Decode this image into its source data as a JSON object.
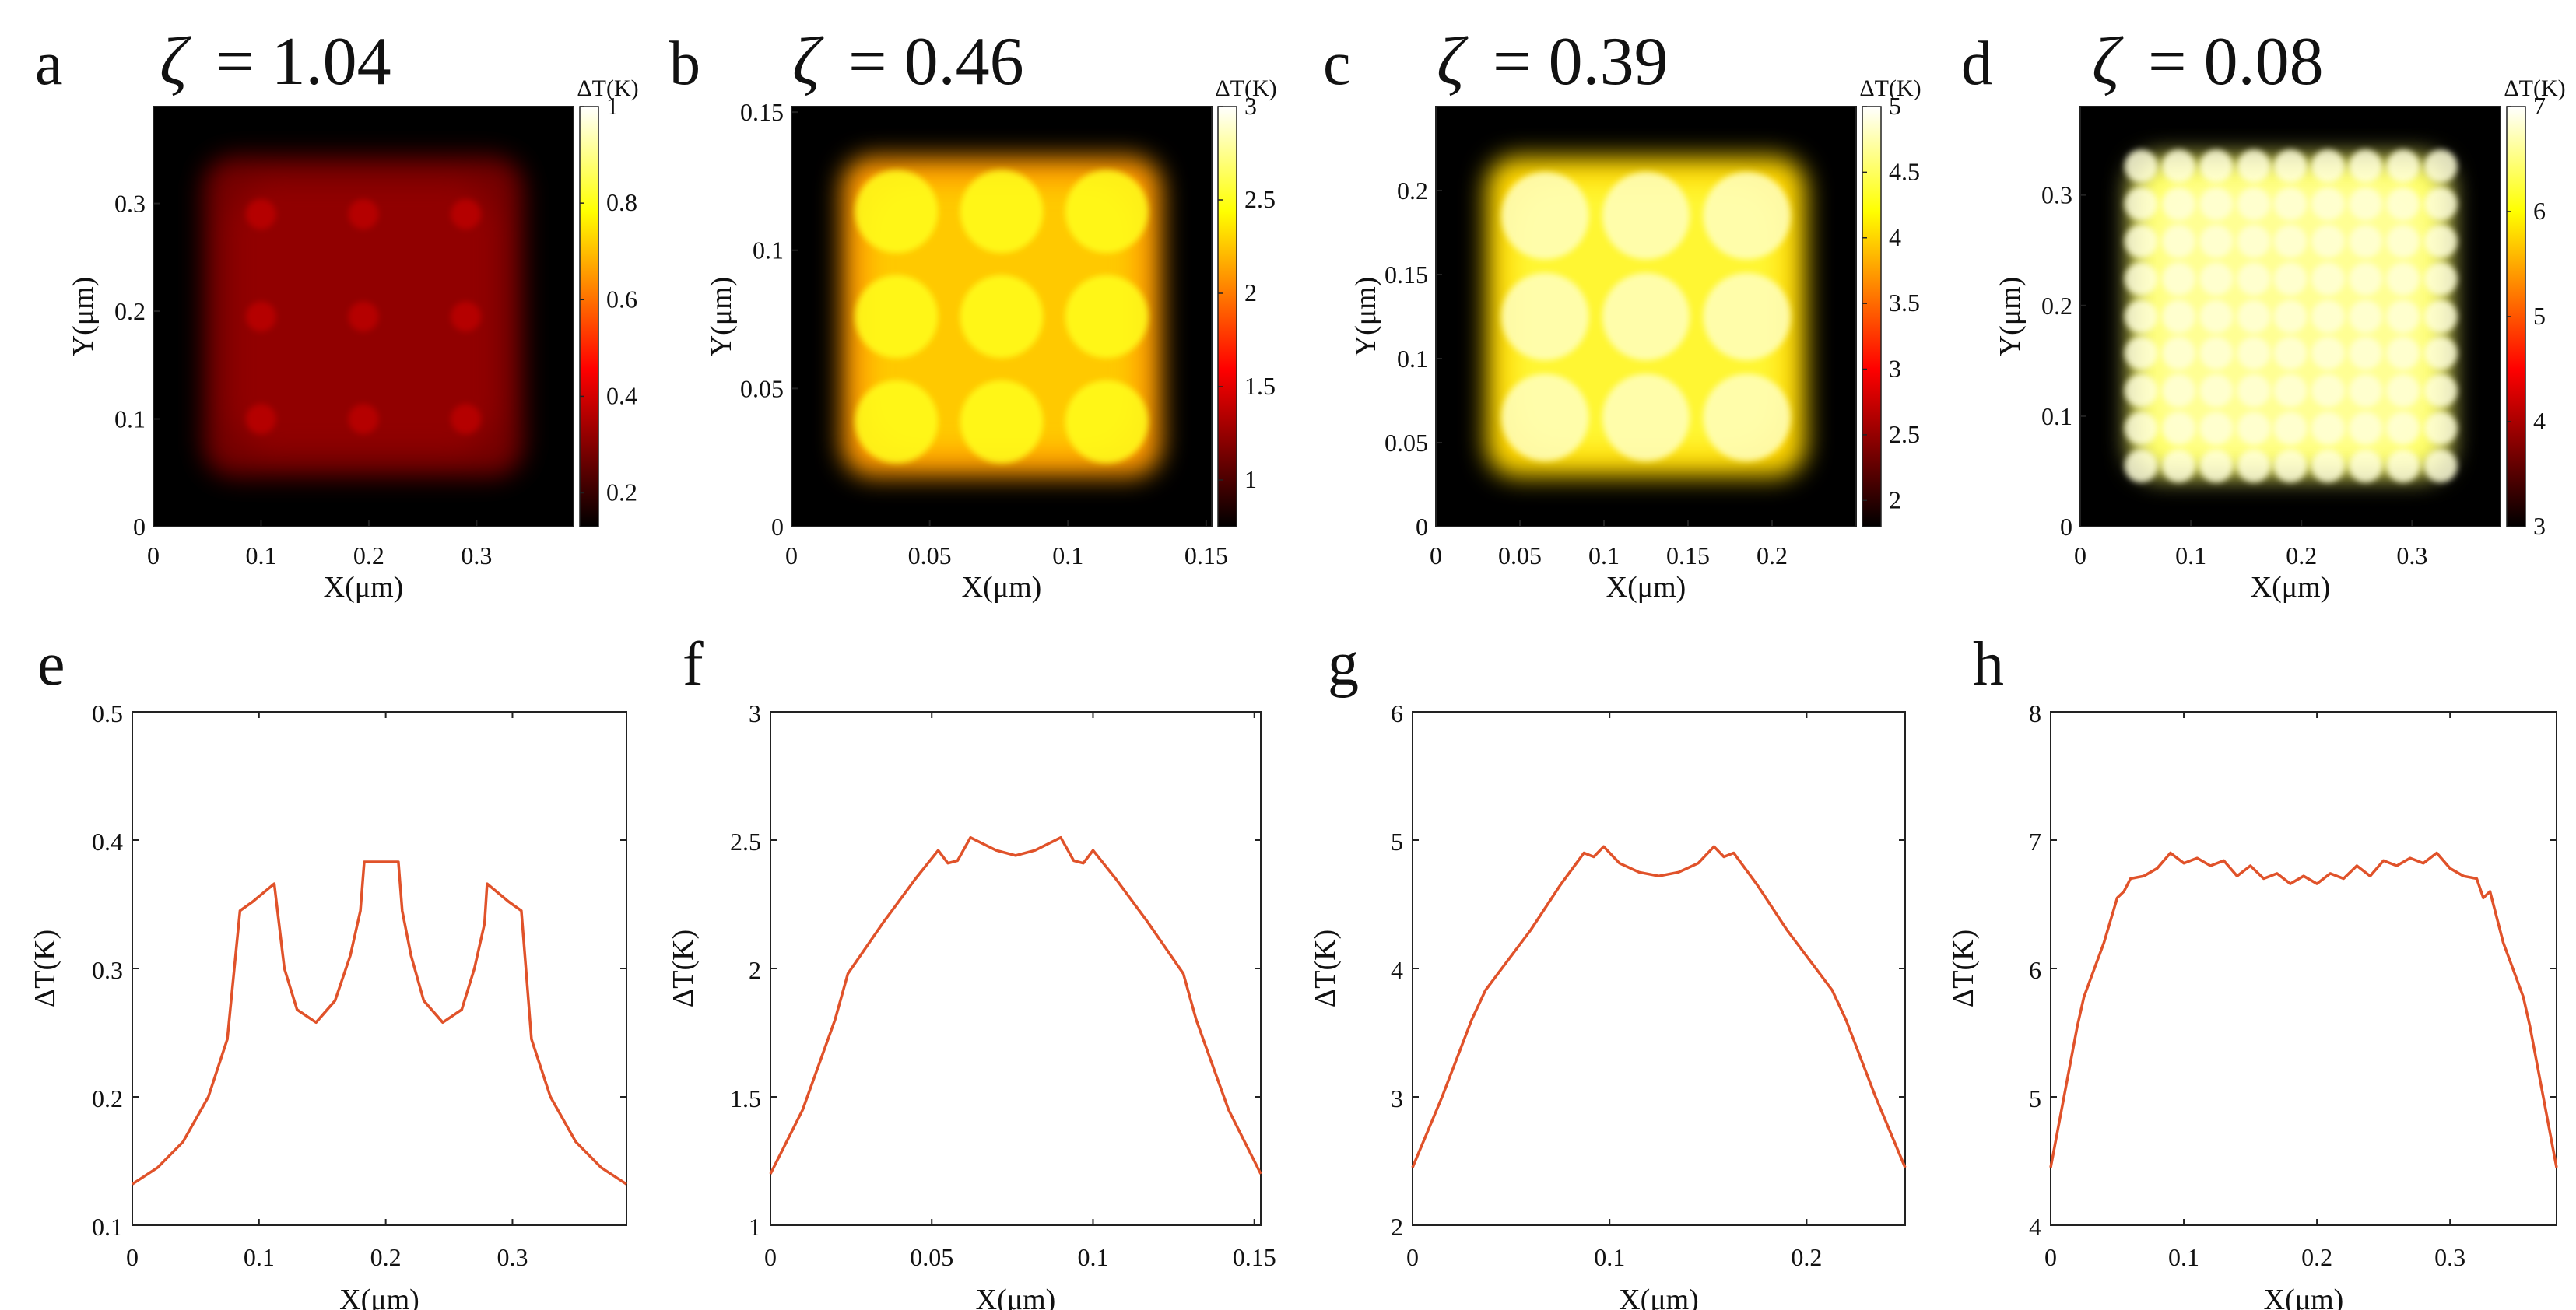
{
  "chart_data": [
    {
      "type": "heatmap",
      "panel": "a",
      "title_symbol": "ζ",
      "title_value": "= 1.04",
      "xlabel": "X(μm)",
      "ylabel": "Y(μm)",
      "xlim": [
        0,
        0.39
      ],
      "ylim": [
        0,
        0.39
      ],
      "xticks": [
        0,
        0.1,
        0.2,
        0.3
      ],
      "yticks": [
        0,
        0.1,
        0.2,
        0.3
      ],
      "colorbar_label": "ΔT(K)",
      "colorbar_range": [
        0.13,
        1
      ],
      "colorbar_ticks": [
        0.2,
        0.4,
        0.6,
        0.8,
        1
      ],
      "grid_n": 3,
      "grid_x": [
        0.1,
        0.195,
        0.29
      ],
      "grid_y": [
        0.1,
        0.195,
        0.29
      ],
      "spot_radius": 0.014,
      "background_level": 0.28,
      "spot_level": 0.37
    },
    {
      "type": "heatmap",
      "panel": "b",
      "title_symbol": "ζ",
      "title_value": "= 0.46",
      "xlabel": "X(μm)",
      "ylabel": "Y(μm)",
      "xlim": [
        0,
        0.152
      ],
      "ylim": [
        0,
        0.152
      ],
      "xticks": [
        0,
        0.05,
        0.1,
        0.15
      ],
      "yticks": [
        0,
        0.05,
        0.1,
        0.15
      ],
      "colorbar_label": "ΔT(K)",
      "colorbar_range": [
        0.75,
        3
      ],
      "colorbar_ticks": [
        1,
        1.5,
        2,
        2.5,
        3
      ],
      "grid_n": 3,
      "grid_x": [
        0.038,
        0.076,
        0.114
      ],
      "grid_y": [
        0.038,
        0.076,
        0.114
      ],
      "spot_radius": 0.015,
      "background_level": 2.1,
      "spot_level": 2.5
    },
    {
      "type": "heatmap",
      "panel": "c",
      "title_symbol": "ζ",
      "title_value": "= 0.39",
      "xlabel": "X(μm)",
      "ylabel": "Y(μm)",
      "xlim": [
        0,
        0.25
      ],
      "ylim": [
        0,
        0.25
      ],
      "xticks": [
        0,
        0.05,
        0.1,
        0.15,
        0.2
      ],
      "yticks": [
        0,
        0.05,
        0.1,
        0.15,
        0.2
      ],
      "colorbar_label": "ΔT(K)",
      "colorbar_range": [
        1.8,
        5
      ],
      "colorbar_ticks": [
        2,
        2.5,
        3,
        3.5,
        4,
        4.5,
        5
      ],
      "grid_n": 3,
      "grid_x": [
        0.065,
        0.125,
        0.185
      ],
      "grid_y": [
        0.065,
        0.125,
        0.185
      ],
      "spot_radius": 0.026,
      "background_level": 4.0,
      "spot_level": 4.8
    },
    {
      "type": "heatmap",
      "panel": "d",
      "title_symbol": "ζ",
      "title_value": "= 0.08",
      "xlabel": "X(μm)",
      "ylabel": "Y(μm)",
      "xlim": [
        0,
        0.38
      ],
      "ylim": [
        0,
        0.38
      ],
      "xticks": [
        0,
        0.1,
        0.2,
        0.3
      ],
      "yticks": [
        0,
        0.1,
        0.2,
        0.3
      ],
      "colorbar_label": "ΔT(K)",
      "colorbar_range": [
        3,
        7
      ],
      "colorbar_ticks": [
        3,
        4,
        5,
        6,
        7
      ],
      "grid_n": 9,
      "grid_x": [
        0.055,
        0.089,
        0.123,
        0.157,
        0.19,
        0.224,
        0.258,
        0.292,
        0.326
      ],
      "grid_y": [
        0.055,
        0.089,
        0.123,
        0.157,
        0.19,
        0.224,
        0.258,
        0.292,
        0.326
      ],
      "spot_radius": 0.015,
      "background_level": 6.4,
      "spot_level": 6.85
    },
    {
      "type": "line",
      "panel": "e",
      "xlabel": "X(μm)",
      "ylabel": "ΔT(K)",
      "xlim": [
        0,
        0.39
      ],
      "ylim": [
        0.1,
        0.5
      ],
      "xticks": [
        0,
        0.1,
        0.2,
        0.3
      ],
      "yticks": [
        0.1,
        0.2,
        0.3,
        0.4,
        0.5
      ],
      "series": [
        {
          "name": "ΔT",
          "color": "#e0522a",
          "x": [
            0,
            0.02,
            0.04,
            0.06,
            0.075,
            0.085,
            0.095,
            0.112,
            0.12,
            0.13,
            0.145,
            0.16,
            0.172,
            0.18,
            0.183,
            0.21,
            0.213,
            0.22,
            0.23,
            0.245,
            0.26,
            0.27,
            0.278,
            0.28,
            0.297,
            0.307,
            0.315,
            0.33,
            0.35,
            0.37,
            0.39
          ],
          "y": [
            0.132,
            0.145,
            0.165,
            0.2,
            0.245,
            0.345,
            0.352,
            0.366,
            0.3,
            0.268,
            0.258,
            0.275,
            0.31,
            0.345,
            0.383,
            0.383,
            0.345,
            0.31,
            0.275,
            0.258,
            0.268,
            0.3,
            0.335,
            0.366,
            0.352,
            0.345,
            0.245,
            0.2,
            0.165,
            0.145,
            0.132
          ]
        }
      ]
    },
    {
      "type": "line",
      "panel": "f",
      "xlabel": "X(μm)",
      "ylabel": "ΔT(K)",
      "xlim": [
        0,
        0.152
      ],
      "ylim": [
        1,
        3
      ],
      "xticks": [
        0,
        0.05,
        0.1,
        0.15
      ],
      "yticks": [
        1,
        1.5,
        2,
        2.5,
        3
      ],
      "series": [
        {
          "name": "ΔT",
          "color": "#e0522a",
          "x": [
            0,
            0.01,
            0.02,
            0.024,
            0.035,
            0.045,
            0.052,
            0.055,
            0.058,
            0.062,
            0.07,
            0.076,
            0.082,
            0.09,
            0.094,
            0.097,
            0.1,
            0.107,
            0.117,
            0.128,
            0.132,
            0.142,
            0.152
          ],
          "y": [
            1.2,
            1.45,
            1.8,
            1.98,
            2.18,
            2.35,
            2.46,
            2.41,
            2.42,
            2.51,
            2.46,
            2.44,
            2.46,
            2.51,
            2.42,
            2.41,
            2.46,
            2.35,
            2.18,
            1.98,
            1.8,
            1.45,
            1.2
          ]
        }
      ]
    },
    {
      "type": "line",
      "panel": "g",
      "xlabel": "X(μm)",
      "ylabel": "ΔT(K)",
      "xlim": [
        0,
        0.25
      ],
      "ylim": [
        2,
        6
      ],
      "xticks": [
        0,
        0.1,
        0.2
      ],
      "yticks": [
        2,
        3,
        4,
        5,
        6
      ],
      "series": [
        {
          "name": "ΔT",
          "color": "#e0522a",
          "x": [
            0,
            0.015,
            0.03,
            0.037,
            0.06,
            0.075,
            0.087,
            0.092,
            0.097,
            0.105,
            0.115,
            0.125,
            0.135,
            0.145,
            0.153,
            0.158,
            0.163,
            0.175,
            0.19,
            0.213,
            0.22,
            0.235,
            0.25
          ],
          "y": [
            2.45,
            3.0,
            3.6,
            3.83,
            4.3,
            4.65,
            4.9,
            4.87,
            4.95,
            4.82,
            4.75,
            4.72,
            4.75,
            4.82,
            4.95,
            4.87,
            4.9,
            4.65,
            4.3,
            3.83,
            3.6,
            3.0,
            2.45
          ]
        }
      ]
    },
    {
      "type": "line",
      "panel": "h",
      "xlabel": "X(μm)",
      "ylabel": "ΔT(K)",
      "xlim": [
        0,
        0.38
      ],
      "ylim": [
        4,
        8
      ],
      "xticks": [
        0,
        0.1,
        0.2,
        0.3
      ],
      "yticks": [
        4,
        5,
        6,
        7,
        8
      ],
      "series": [
        {
          "name": "ΔT",
          "color": "#e0522a",
          "x": [
            0,
            0.01,
            0.02,
            0.025,
            0.04,
            0.05,
            0.055,
            0.06,
            0.07,
            0.08,
            0.09,
            0.1,
            0.11,
            0.12,
            0.13,
            0.14,
            0.15,
            0.16,
            0.17,
            0.18,
            0.19,
            0.2,
            0.21,
            0.22,
            0.23,
            0.24,
            0.25,
            0.26,
            0.27,
            0.28,
            0.29,
            0.3,
            0.31,
            0.32,
            0.325,
            0.33,
            0.34,
            0.355,
            0.36,
            0.37,
            0.38
          ],
          "y": [
            4.45,
            5.0,
            5.55,
            5.78,
            6.2,
            6.55,
            6.6,
            6.7,
            6.72,
            6.78,
            6.9,
            6.82,
            6.86,
            6.8,
            6.84,
            6.72,
            6.8,
            6.7,
            6.74,
            6.66,
            6.72,
            6.66,
            6.74,
            6.7,
            6.8,
            6.72,
            6.84,
            6.8,
            6.86,
            6.82,
            6.9,
            6.78,
            6.72,
            6.7,
            6.55,
            6.6,
            6.2,
            5.78,
            5.55,
            5.0,
            4.45
          ]
        }
      ]
    }
  ]
}
